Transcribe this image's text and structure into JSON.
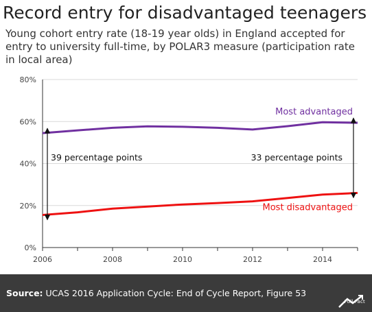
{
  "title": "Record entry for disadvantaged teenagers",
  "subtitle": "Young cohort entry rate (18-19 year olds) in England accepted for entry to university full-time, by POLAR3 measure (participation rate in local area)",
  "source_label": "Source:",
  "source_text": "UCAS 2016 Application Cycle: End of Cycle Report, Figure 53",
  "logo_text": "Full Fact",
  "colors": {
    "advantaged": "#7030a0",
    "disadvantaged": "#ee1111",
    "axis": "#333333",
    "grid": "#d9d9d9",
    "footer": "#3b3b3b"
  },
  "chart_data": {
    "type": "line",
    "x": [
      2006,
      2007,
      2008,
      2009,
      2010,
      2011,
      2012,
      2013,
      2014,
      2015
    ],
    "series": [
      {
        "name": "Most advantaged",
        "values": [
          54.5,
          55.8,
          57.0,
          57.7,
          57.5,
          57.0,
          56.2,
          57.8,
          59.7,
          59.4
        ]
      },
      {
        "name": "Most disadvantaged",
        "values": [
          15.5,
          16.8,
          18.5,
          19.5,
          20.5,
          21.2,
          22.0,
          23.6,
          25.2,
          26.0
        ]
      }
    ],
    "xticks": [
      2006,
      2008,
      2010,
      2012,
      2014
    ],
    "yticks": [
      0,
      20,
      40,
      60,
      80
    ],
    "ytick_labels": [
      "0%",
      "20%",
      "40%",
      "60%",
      "80%"
    ],
    "ylim": [
      0,
      80
    ],
    "xlim": [
      2006,
      2015
    ],
    "grid": "horizontal",
    "annotations": [
      {
        "text": "39 percentage points",
        "x": 2006,
        "from": 15.5,
        "to": 54.5
      },
      {
        "text": "33 percentage points",
        "x": 2015,
        "from": 26.0,
        "to": 59.4
      }
    ]
  }
}
